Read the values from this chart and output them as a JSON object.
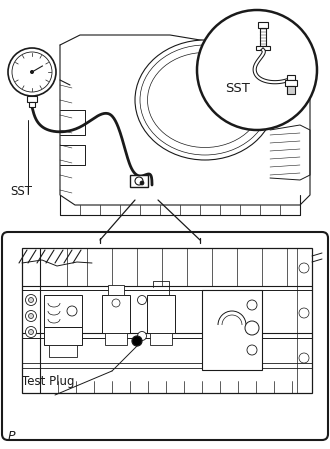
{
  "bg_color": "#ffffff",
  "line_color": "#1a1a1a",
  "labels": {
    "sst_main": "SST",
    "sst_inset": "SST",
    "test_plug": "Test Plug",
    "page_marker": "P"
  },
  "label_fontsize": 8.5,
  "page_fontsize": 9,
  "fig_width": 3.3,
  "fig_height": 4.49,
  "dpi": 100
}
